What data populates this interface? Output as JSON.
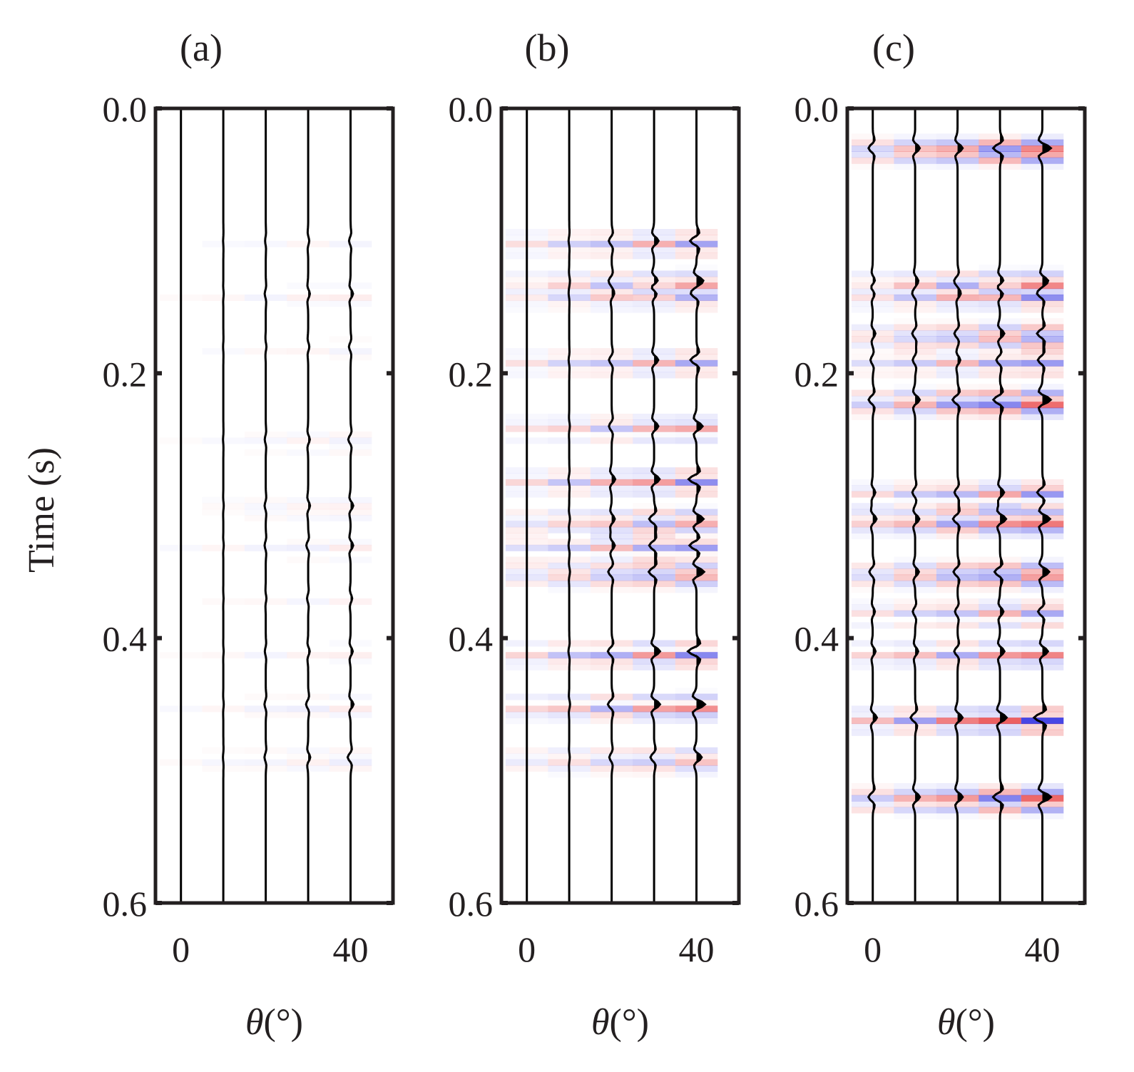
{
  "chart_data": [
    {
      "type": "heatmap",
      "panel_label": "(a)",
      "xlabel_symbol": "θ",
      "xlabel_unit": "(°)",
      "ylabel": "Time (s)",
      "x_ticks": [
        "0",
        "40"
      ],
      "x_tick_values": [
        0,
        40
      ],
      "y_ticks": [
        "0.0",
        "0.2",
        "0.4",
        "0.6"
      ],
      "y_tick_values": [
        0.0,
        0.2,
        0.4,
        0.6
      ],
      "ylim": [
        0.0,
        0.6
      ],
      "xlim": [
        -6,
        50
      ],
      "trace_angles": [
        0,
        10,
        20,
        30,
        40
      ],
      "trace_amplitude": [
        0.0,
        0.05,
        0.15,
        0.25,
        0.35
      ],
      "color_intensity": 0.1,
      "event_times": [
        0.1,
        0.14,
        0.18,
        0.25,
        0.3,
        0.33,
        0.37,
        0.41,
        0.45,
        0.49
      ],
      "colormap": {
        "positive": "#e41a1c",
        "negative": "#1f1fe0"
      },
      "trace_color": "#000000"
    },
    {
      "type": "heatmap",
      "panel_label": "(b)",
      "xlabel_symbol": "θ",
      "xlabel_unit": "(°)",
      "x_ticks": [
        "0",
        "40"
      ],
      "x_tick_values": [
        0,
        40
      ],
      "y_ticks": [
        "0.0",
        "0.2",
        "0.4",
        "0.6"
      ],
      "y_tick_values": [
        0.0,
        0.2,
        0.4,
        0.6
      ],
      "ylim": [
        0.0,
        0.6
      ],
      "xlim": [
        -6,
        50
      ],
      "trace_angles": [
        0,
        10,
        20,
        30,
        40
      ],
      "trace_amplitude": [
        0.0,
        0.1,
        0.45,
        0.7,
        1.0
      ],
      "color_intensity": 0.55,
      "event_times": [
        0.1,
        0.13,
        0.14,
        0.19,
        0.24,
        0.28,
        0.31,
        0.33,
        0.35,
        0.41,
        0.45,
        0.49
      ],
      "colormap": {
        "positive": "#e41a1c",
        "negative": "#1f1fe0"
      },
      "trace_color": "#000000"
    },
    {
      "type": "heatmap",
      "panel_label": "(c)",
      "xlabel_symbol": "θ",
      "xlabel_unit": "(°)",
      "x_ticks": [
        "0",
        "40"
      ],
      "x_tick_values": [
        0,
        40
      ],
      "y_ticks": [
        "0.0",
        "0.2",
        "0.4",
        "0.6"
      ],
      "y_tick_values": [
        0.0,
        0.2,
        0.4,
        0.6
      ],
      "ylim": [
        0.0,
        0.6
      ],
      "xlim": [
        -6,
        50
      ],
      "trace_angles": [
        0,
        10,
        20,
        30,
        40
      ],
      "trace_amplitude": [
        0.5,
        0.55,
        0.6,
        0.8,
        1.0
      ],
      "color_intensity": 0.85,
      "event_times": [
        0.03,
        0.13,
        0.14,
        0.17,
        0.19,
        0.22,
        0.29,
        0.31,
        0.35,
        0.38,
        0.41,
        0.46,
        0.52
      ],
      "colormap": {
        "positive": "#e41a1c",
        "negative": "#1f1fe0"
      },
      "trace_color": "#000000"
    }
  ]
}
